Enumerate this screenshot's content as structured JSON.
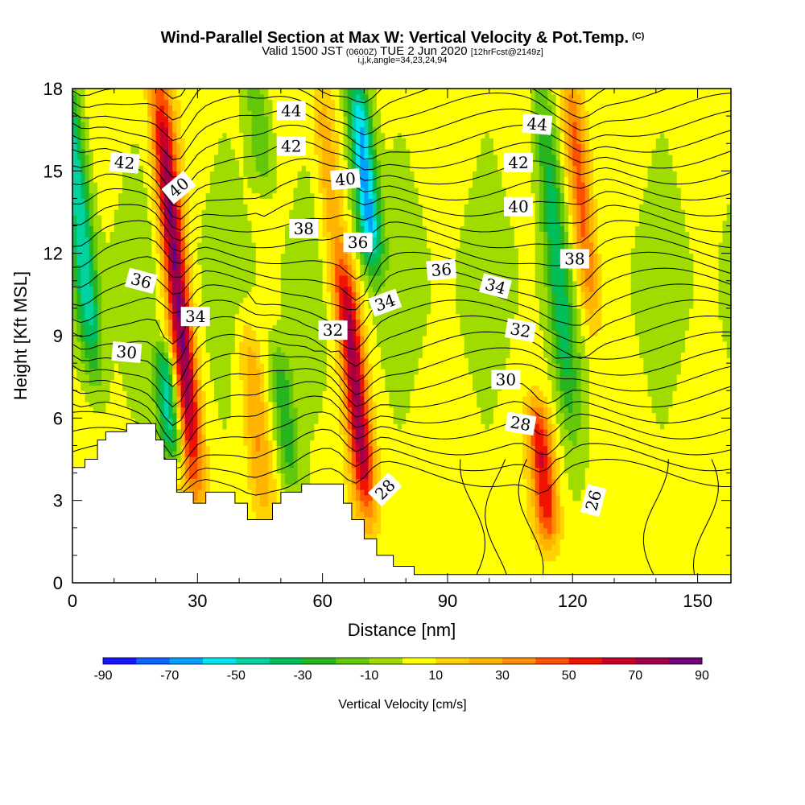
{
  "title": {
    "main": "Wind-Parallel Section at Max W: Vertical Velocity & Pot.Temp.",
    "copyright": "(C)",
    "valid_prefix": "Valid 1500 JST",
    "valid_utc": "(0600Z)",
    "valid_date": "TUE 2 Jun 2020",
    "forecast": "[12hrFcst@2149z]",
    "indices": "i,j,k,angle=34,23,24,94"
  },
  "chart_data": {
    "type": "heatmap",
    "xlabel": "Distance [nm]",
    "ylabel": "Height [Kft MSL]",
    "xlim": [
      0,
      158
    ],
    "ylim": [
      0,
      18
    ],
    "x_ticks": [
      "0",
      "30",
      "60",
      "90",
      "120",
      "150"
    ],
    "y_ticks": [
      "0",
      "3",
      "6",
      "9",
      "12",
      "15",
      "18"
    ],
    "colorbar": {
      "label": "Vertical Velocity [cm/s]",
      "tick_labels": [
        "-90",
        "-70",
        "-50",
        "-30",
        "-10",
        "10",
        "30",
        "50",
        "70",
        "90"
      ],
      "levels": [
        -90,
        -80,
        -70,
        -60,
        -50,
        -40,
        -30,
        -20,
        -10,
        0,
        10,
        20,
        30,
        40,
        50,
        60,
        70,
        80,
        90
      ],
      "colors": [
        "#1414ff",
        "#0a64ff",
        "#00a0ff",
        "#00e6f0",
        "#00d2a0",
        "#00be5a",
        "#28b41e",
        "#64c80a",
        "#a0dc00",
        "#ffff00",
        "#ffd200",
        "#ffb400",
        "#ff8c00",
        "#ff5000",
        "#f01400",
        "#c80028",
        "#a0004b",
        "#6e0078"
      ]
    },
    "shading_field": "vertical velocity (cm/s)",
    "updrafts": [
      {
        "x": 25,
        "z": [
          4,
          18
        ],
        "peak": 80
      },
      {
        "x": 68,
        "z": [
          3,
          11
        ],
        "peak": 70
      },
      {
        "x": 113,
        "z": [
          2,
          6
        ],
        "peak": 55
      },
      {
        "x": 122,
        "z": [
          10,
          18
        ],
        "peak": 45
      },
      {
        "x": 44,
        "z": [
          3,
          9
        ],
        "peak": 25
      },
      {
        "x": 62,
        "z": [
          10,
          18
        ],
        "peak": 25
      }
    ],
    "downdrafts": [
      {
        "x": 2,
        "z": [
          8,
          18
        ],
        "peak": -50
      },
      {
        "x": 23,
        "z": [
          5,
          8
        ],
        "peak": -50
      },
      {
        "x": 70,
        "z": [
          12,
          18
        ],
        "peak": -70
      },
      {
        "x": 116,
        "z": [
          6,
          18
        ],
        "peak": -35
      },
      {
        "x": 51,
        "z": [
          4,
          8
        ],
        "peak": -30
      },
      {
        "x": 45,
        "z": [
          15,
          18
        ],
        "peak": -25
      }
    ],
    "contour_field": "potential temperature",
    "contour_labels": [
      {
        "text": "44",
        "x": 52.5,
        "z": 17.2,
        "angle": 0
      },
      {
        "text": "42",
        "x": 52.5,
        "z": 15.9,
        "angle": 0
      },
      {
        "text": "42",
        "x": 12.5,
        "z": 15.3,
        "angle": 5
      },
      {
        "text": "40",
        "x": 25.5,
        "z": 14.4,
        "angle": -40
      },
      {
        "text": "40",
        "x": 65.5,
        "z": 14.7,
        "angle": -5
      },
      {
        "text": "38",
        "x": 55.5,
        "z": 12.9,
        "angle": 0
      },
      {
        "text": "36",
        "x": 68.5,
        "z": 12.4,
        "angle": 0
      },
      {
        "text": "36",
        "x": 16.5,
        "z": 11.0,
        "angle": 15
      },
      {
        "text": "36",
        "x": 88.5,
        "z": 11.4,
        "angle": -5
      },
      {
        "text": "34",
        "x": 29.5,
        "z": 9.7,
        "angle": 0
      },
      {
        "text": "34",
        "x": 75.0,
        "z": 10.2,
        "angle": -20
      },
      {
        "text": "34",
        "x": 101.5,
        "z": 10.8,
        "angle": 15
      },
      {
        "text": "32",
        "x": 62.5,
        "z": 9.2,
        "angle": 0
      },
      {
        "text": "32",
        "x": 107.5,
        "z": 9.2,
        "angle": 10
      },
      {
        "text": "30",
        "x": 13.0,
        "z": 8.4,
        "angle": 5
      },
      {
        "text": "30",
        "x": 104.0,
        "z": 7.4,
        "angle": 0
      },
      {
        "text": "28",
        "x": 107.5,
        "z": 5.8,
        "angle": 10
      },
      {
        "text": "28",
        "x": 75.0,
        "z": 3.4,
        "angle": -45
      },
      {
        "text": "26",
        "x": 125.0,
        "z": 3.0,
        "angle": -75
      },
      {
        "text": "44",
        "x": 111.5,
        "z": 16.7,
        "angle": 5
      },
      {
        "text": "42",
        "x": 107.0,
        "z": 15.3,
        "angle": 0
      },
      {
        "text": "40",
        "x": 107.0,
        "z": 13.7,
        "angle": 0
      },
      {
        "text": "38",
        "x": 120.5,
        "z": 11.8,
        "angle": 0
      }
    ],
    "terrain": [
      [
        0,
        4.2
      ],
      [
        3,
        4.2
      ],
      [
        3,
        4.5
      ],
      [
        6,
        4.5
      ],
      [
        6,
        5.2
      ],
      [
        8,
        5.2
      ],
      [
        8,
        5.5
      ],
      [
        13,
        5.5
      ],
      [
        13,
        5.8
      ],
      [
        20,
        5.8
      ],
      [
        20,
        5.2
      ],
      [
        22,
        5.2
      ],
      [
        22,
        4.5
      ],
      [
        25,
        4.5
      ],
      [
        25,
        3.3
      ],
      [
        29,
        3.3
      ],
      [
        29,
        2.9
      ],
      [
        32,
        2.9
      ],
      [
        32,
        3.3
      ],
      [
        39,
        3.3
      ],
      [
        39,
        2.9
      ],
      [
        42,
        2.9
      ],
      [
        42,
        2.3
      ],
      [
        48,
        2.3
      ],
      [
        48,
        2.9
      ],
      [
        50,
        2.9
      ],
      [
        50,
        3.3
      ],
      [
        55,
        3.3
      ],
      [
        55,
        3.6
      ],
      [
        65,
        3.6
      ],
      [
        65,
        2.9
      ],
      [
        67,
        2.9
      ],
      [
        67,
        2.3
      ],
      [
        70,
        2.3
      ],
      [
        70,
        1.6
      ],
      [
        73,
        1.6
      ],
      [
        73,
        1.0
      ],
      [
        77,
        1.0
      ],
      [
        77,
        0.6
      ],
      [
        82,
        0.6
      ],
      [
        82,
        0.3
      ],
      [
        158,
        0.3
      ]
    ]
  }
}
